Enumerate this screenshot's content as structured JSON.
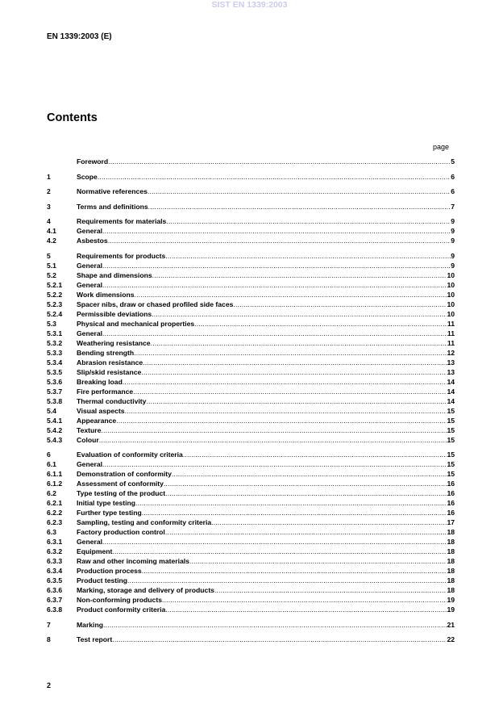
{
  "watermark": "SIST EN 1339:2003",
  "header": "EN 1339:2003 (E)",
  "title": "Contents",
  "page_label": "page",
  "toc": [
    [
      {
        "num": "",
        "title": "Foreword",
        "page": "5"
      }
    ],
    [
      {
        "num": "1",
        "title": "Scope",
        "page": "6"
      }
    ],
    [
      {
        "num": "2",
        "title": "Normative references",
        "page": "6"
      }
    ],
    [
      {
        "num": "3",
        "title": "Terms and definitions",
        "page": "7"
      }
    ],
    [
      {
        "num": "4",
        "title": "Requirements for materials",
        "page": "9"
      },
      {
        "num": "4.1",
        "title": "General",
        "page": "9"
      },
      {
        "num": "4.2",
        "title": "Asbestos",
        "page": "9"
      }
    ],
    [
      {
        "num": "5",
        "title": "Requirements for products",
        "page": "9"
      },
      {
        "num": "5.1",
        "title": "General",
        "page": "9"
      },
      {
        "num": "5.2",
        "title": "Shape and dimensions",
        "page": "10"
      },
      {
        "num": "5.2.1",
        "title": "General",
        "page": "10"
      },
      {
        "num": "5.2.2",
        "title": "Work dimensions",
        "page": "10"
      },
      {
        "num": "5.2.3",
        "title": "Spacer nibs, draw or chased profiled side faces",
        "page": "10"
      },
      {
        "num": "5.2.4",
        "title": "Permissible deviations",
        "page": "10"
      },
      {
        "num": "5.3",
        "title": "Physical and mechanical properties",
        "page": "11"
      },
      {
        "num": "5.3.1",
        "title": "General",
        "page": "11"
      },
      {
        "num": "5.3.2",
        "title": "Weathering resistance",
        "page": "11"
      },
      {
        "num": "5.3.3",
        "title": "Bending strength",
        "page": "12"
      },
      {
        "num": "5.3.4",
        "title": "Abrasion resistance",
        "page": "13"
      },
      {
        "num": "5.3.5",
        "title": "Slip/skid resistance",
        "page": "13"
      },
      {
        "num": "5.3.6",
        "title": "Breaking load",
        "page": "14"
      },
      {
        "num": "5.3.7",
        "title": "Fire performance",
        "page": "14"
      },
      {
        "num": "5.3.8",
        "title": "Thermal conductivity",
        "page": "14"
      },
      {
        "num": "5.4",
        "title": "Visual aspects",
        "page": "15"
      },
      {
        "num": "5.4.1",
        "title": "Appearance",
        "page": "15"
      },
      {
        "num": "5.4.2",
        "title": "Texture",
        "page": "15"
      },
      {
        "num": "5.4.3",
        "title": "Colour",
        "page": "15"
      }
    ],
    [
      {
        "num": "6",
        "title": "Evaluation of conformity criteria",
        "page": "15"
      },
      {
        "num": "6.1",
        "title": "General",
        "page": "15"
      },
      {
        "num": "6.1.1",
        "title": "Demonstration of conformity",
        "page": "15"
      },
      {
        "num": "6.1.2",
        "title": "Assessment of conformity",
        "page": "16"
      },
      {
        "num": "6.2",
        "title": "Type testing of the product",
        "page": "16"
      },
      {
        "num": "6.2.1",
        "title": "Initial type testing",
        "page": "16"
      },
      {
        "num": "6.2.2",
        "title": "Further type testing",
        "page": "16"
      },
      {
        "num": "6.2.3",
        "title": "Sampling, testing and conformity criteria",
        "page": "17"
      },
      {
        "num": "6.3",
        "title": "Factory production control",
        "page": "18"
      },
      {
        "num": "6.3.1",
        "title": "General",
        "page": "18"
      },
      {
        "num": "6.3.2",
        "title": "Equipment",
        "page": "18"
      },
      {
        "num": "6.3.3",
        "title": "Raw and other incoming materials",
        "page": "18"
      },
      {
        "num": "6.3.4",
        "title": "Production process",
        "page": "18"
      },
      {
        "num": "6.3.5",
        "title": "Product testing",
        "page": "18"
      },
      {
        "num": "6.3.6",
        "title": "Marking, storage and delivery of products",
        "page": "18"
      },
      {
        "num": "6.3.7",
        "title": "Non-conforming products",
        "page": "19"
      },
      {
        "num": "6.3.8",
        "title": "Product conformity criteria",
        "page": "19"
      }
    ],
    [
      {
        "num": "7",
        "title": "Marking",
        "page": "21"
      }
    ],
    [
      {
        "num": "8",
        "title": "Test report",
        "page": "22"
      }
    ]
  ],
  "page_number": "2"
}
